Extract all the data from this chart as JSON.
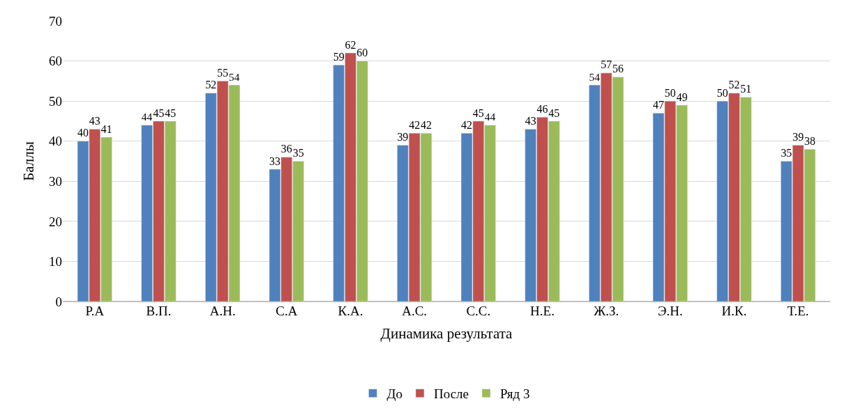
{
  "chart_data": {
    "type": "bar",
    "xlabel": "Динамика результата",
    "ylabel": "Баллы",
    "categories": [
      "Р.А",
      "В.П.",
      "А.Н.",
      "С.А",
      "К.А.",
      "А.С.",
      "С.С.",
      "Н.Е.",
      "Ж.З.",
      "Э.Н.",
      "И.К.",
      "Т.Е."
    ],
    "series": [
      {
        "name": "До",
        "color": "#4f81bd",
        "values": [
          40,
          44,
          52,
          33,
          59,
          39,
          42,
          43,
          54,
          47,
          50,
          35
        ]
      },
      {
        "name": "После",
        "color": "#c0504d",
        "values": [
          43,
          45,
          55,
          36,
          62,
          42,
          45,
          46,
          57,
          50,
          52,
          39
        ]
      },
      {
        "name": "Ряд 3",
        "color": "#9bbb59",
        "values": [
          41,
          45,
          54,
          35,
          60,
          42,
          44,
          45,
          56,
          49,
          51,
          38
        ]
      }
    ],
    "ylim": [
      0,
      70
    ],
    "yticks": [
      0,
      10,
      20,
      30,
      40,
      50,
      60,
      70
    ],
    "grid": "y",
    "legend": "bottom",
    "data_labels": true
  }
}
